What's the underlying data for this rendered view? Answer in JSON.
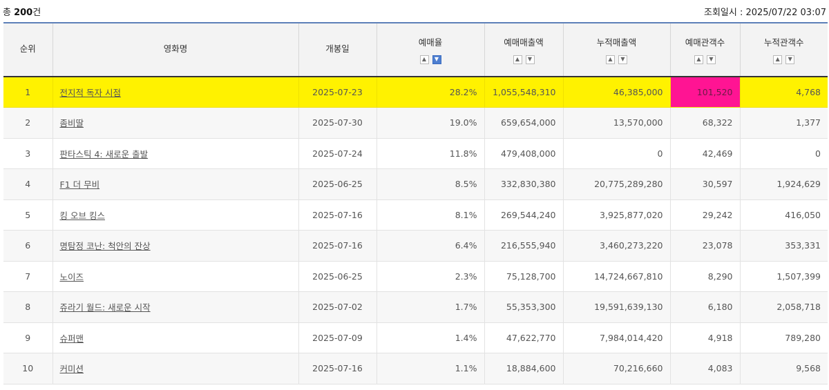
{
  "summary": {
    "prefix": "총 ",
    "count": "200",
    "suffix": "건"
  },
  "query_time": "조회일시 : 2025/07/22 03:07",
  "columns": [
    {
      "label": "순위",
      "sortable": false
    },
    {
      "label": "영화명",
      "sortable": false
    },
    {
      "label": "개봉일",
      "sortable": false
    },
    {
      "label": "예매율",
      "sortable": true,
      "active": "down"
    },
    {
      "label": "예매매출액",
      "sortable": true
    },
    {
      "label": "누적매출액",
      "sortable": true
    },
    {
      "label": "예매관객수",
      "sortable": true
    },
    {
      "label": "누적관객수",
      "sortable": true
    }
  ],
  "rows": [
    {
      "rank": "1",
      "title": "전지적 독자 시점",
      "release": "2025-07-23",
      "rate": "28.2%",
      "sales": "1,055,548,310",
      "cum_sales": "46,385,000",
      "audience": "101,520",
      "cum_audience": "4,768"
    },
    {
      "rank": "2",
      "title": "좀비딸",
      "release": "2025-07-30",
      "rate": "19.0%",
      "sales": "659,654,000",
      "cum_sales": "13,570,000",
      "audience": "68,322",
      "cum_audience": "1,377"
    },
    {
      "rank": "3",
      "title": "판타스틱 4: 새로운 출발",
      "release": "2025-07-24",
      "rate": "11.8%",
      "sales": "479,408,000",
      "cum_sales": "0",
      "audience": "42,469",
      "cum_audience": "0"
    },
    {
      "rank": "4",
      "title": "F1 더 무비",
      "release": "2025-06-25",
      "rate": "8.5%",
      "sales": "332,830,380",
      "cum_sales": "20,775,289,280",
      "audience": "30,597",
      "cum_audience": "1,924,629"
    },
    {
      "rank": "5",
      "title": "킹 오브 킹스",
      "release": "2025-07-16",
      "rate": "8.1%",
      "sales": "269,544,240",
      "cum_sales": "3,925,877,020",
      "audience": "29,242",
      "cum_audience": "416,050"
    },
    {
      "rank": "6",
      "title": "명탐정 코난: 척안의 잔상",
      "release": "2025-07-16",
      "rate": "6.4%",
      "sales": "216,555,940",
      "cum_sales": "3,460,273,220",
      "audience": "23,078",
      "cum_audience": "353,331"
    },
    {
      "rank": "7",
      "title": "노이즈",
      "release": "2025-06-25",
      "rate": "2.3%",
      "sales": "75,128,700",
      "cum_sales": "14,724,667,810",
      "audience": "8,290",
      "cum_audience": "1,507,399"
    },
    {
      "rank": "8",
      "title": "쥬라기 월드: 새로운 시작",
      "release": "2025-07-02",
      "rate": "1.7%",
      "sales": "55,353,300",
      "cum_sales": "19,591,639,130",
      "audience": "6,180",
      "cum_audience": "2,058,718"
    },
    {
      "rank": "9",
      "title": "슈퍼맨",
      "release": "2025-07-09",
      "rate": "1.4%",
      "sales": "47,622,770",
      "cum_sales": "7,984,014,420",
      "audience": "4,918",
      "cum_audience": "789,280"
    },
    {
      "rank": "10",
      "title": "커미션",
      "release": "2025-07-16",
      "rate": "1.1%",
      "sales": "18,884,600",
      "cum_sales": "70,216,660",
      "audience": "4,083",
      "cum_audience": "9,568"
    }
  ],
  "icons": {
    "sort_up": "▲",
    "sort_down": "▼"
  },
  "colors": {
    "highlight_row": "#fff200",
    "highlight_cell": "#ff1493",
    "header_top_border": "#5c7fb8",
    "active_sort": "#4e7fd0"
  }
}
